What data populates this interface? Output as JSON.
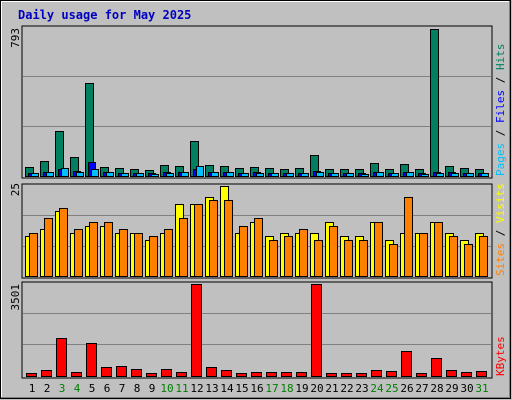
{
  "title": "Daily usage for May 2025",
  "colors": {
    "frame_bg": "#c0c0c0",
    "title": "#0000c0",
    "grid": "#808080",
    "hits": "#008060",
    "files": "#0000ff",
    "pages": "#00c0ff",
    "visits": "#ffff00",
    "sites": "#ff8000",
    "kbytes": "#ff0000",
    "weekend_day": "#008000",
    "weekday": "#000000"
  },
  "chart_data": [
    {
      "type": "bar",
      "panel": "hits-files-pages",
      "scale_label": "793",
      "ylim": [
        0,
        793
      ],
      "categories": [
        "1",
        "2",
        "3",
        "4",
        "5",
        "6",
        "7",
        "8",
        "9",
        "10",
        "11",
        "12",
        "13",
        "14",
        "15",
        "16",
        "17",
        "18",
        "19",
        "20",
        "21",
        "22",
        "23",
        "24",
        "25",
        "26",
        "27",
        "28",
        "29",
        "30",
        "31"
      ],
      "series": [
        {
          "name": "Hits",
          "values": [
            48,
            82,
            240,
            100,
            500,
            48,
            44,
            40,
            32,
            58,
            56,
            185,
            60,
            56,
            44,
            50,
            44,
            40,
            44,
            115,
            40,
            38,
            36,
            68,
            40,
            64,
            36,
            790,
            52,
            44,
            40
          ]
        },
        {
          "name": "Files",
          "values": [
            18,
            22,
            40,
            26,
            75,
            22,
            18,
            16,
            14,
            20,
            24,
            38,
            22,
            22,
            18,
            20,
            18,
            16,
            18,
            28,
            16,
            16,
            14,
            22,
            16,
            24,
            14,
            20,
            20,
            18,
            16
          ]
        },
        {
          "name": "Pages",
          "values": [
            16,
            20,
            45,
            22,
            40,
            20,
            16,
            14,
            12,
            18,
            20,
            55,
            20,
            20,
            16,
            18,
            16,
            14,
            16,
            24,
            14,
            14,
            12,
            20,
            14,
            20,
            12,
            16,
            18,
            16,
            14
          ]
        }
      ],
      "legend": [
        "Pages",
        "Files",
        "Hits"
      ]
    },
    {
      "type": "bar",
      "panel": "visits-sites",
      "scale_label": "25",
      "ylim": [
        0,
        25
      ],
      "categories": [
        "1",
        "2",
        "3",
        "4",
        "5",
        "6",
        "7",
        "8",
        "9",
        "10",
        "11",
        "12",
        "13",
        "14",
        "15",
        "16",
        "17",
        "18",
        "19",
        "20",
        "21",
        "22",
        "23",
        "24",
        "25",
        "26",
        "27",
        "28",
        "29",
        "30",
        "31"
      ],
      "series": [
        {
          "name": "Visits",
          "values": [
            11,
            13,
            18,
            12,
            14,
            14,
            12,
            12,
            10,
            12,
            20,
            20,
            22,
            25,
            12,
            15,
            11,
            12,
            12,
            12,
            15,
            11,
            11,
            15,
            10,
            12,
            12,
            15,
            12,
            10,
            12
          ]
        },
        {
          "name": "Sites",
          "values": [
            12,
            16,
            19,
            13,
            15,
            15,
            13,
            12,
            11,
            13,
            16,
            20,
            21,
            21,
            14,
            16,
            10,
            11,
            13,
            10,
            14,
            10,
            10,
            15,
            9,
            22,
            12,
            15,
            11,
            9,
            11
          ]
        }
      ],
      "legend": [
        "Sites",
        "Visits"
      ]
    },
    {
      "type": "bar",
      "panel": "kbytes",
      "scale_label": "3501",
      "ylim": [
        0,
        3501
      ],
      "categories": [
        "1",
        "2",
        "3",
        "4",
        "5",
        "6",
        "7",
        "8",
        "9",
        "10",
        "11",
        "12",
        "13",
        "14",
        "15",
        "16",
        "17",
        "18",
        "19",
        "20",
        "21",
        "22",
        "23",
        "24",
        "25",
        "26",
        "27",
        "28",
        "29",
        "30",
        "31"
      ],
      "series": [
        {
          "name": "KBytes",
          "values": [
            120,
            240,
            1450,
            170,
            1250,
            350,
            380,
            280,
            110,
            280,
            140,
            3501,
            340,
            220,
            130,
            160,
            140,
            170,
            170,
            3501,
            110,
            120,
            110,
            220,
            200,
            960,
            120,
            700,
            240,
            160,
            180
          ]
        }
      ],
      "legend": [
        "KBytes"
      ]
    }
  ],
  "x_axis": {
    "labels": [
      "1",
      "2",
      "3",
      "4",
      "5",
      "6",
      "7",
      "8",
      "9",
      "10",
      "11",
      "12",
      "13",
      "14",
      "15",
      "16",
      "17",
      "18",
      "19",
      "20",
      "21",
      "22",
      "23",
      "24",
      "25",
      "26",
      "27",
      "28",
      "29",
      "30",
      "31"
    ],
    "weekend_days": [
      "3",
      "4",
      "10",
      "11",
      "17",
      "18",
      "24",
      "25",
      "31"
    ]
  }
}
